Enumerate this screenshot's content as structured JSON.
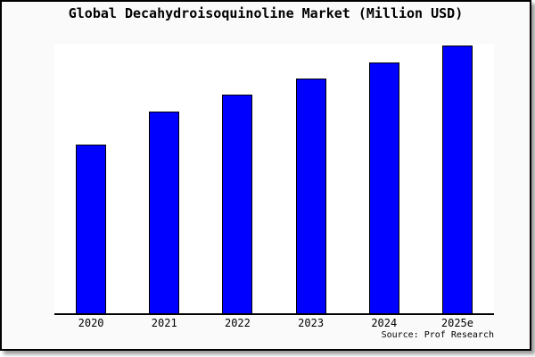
{
  "colors": {
    "bar_fill": "#0000ff",
    "bar_edge": "#000000",
    "plot_bg": "#ffffff",
    "canvas_bg": "#fafafa",
    "frame_border": "#000000"
  },
  "chart_data": {
    "type": "bar",
    "title": "Global Decahydroisoquinoline Market (Million USD)",
    "categories": [
      "2020",
      "2021",
      "2022",
      "2023",
      "2024",
      "2025e"
    ],
    "values": [
      62.9,
      75.2,
      81.6,
      87.7,
      93.7,
      100
    ],
    "values_note": "no y-axis ticks or data labels shown; values estimated from bar heights, normalized so 2025e = 100",
    "xlabel": "",
    "ylabel": "",
    "ylim": [
      0,
      101
    ],
    "grid": false,
    "legend": false,
    "source": "Source: Prof Research"
  }
}
